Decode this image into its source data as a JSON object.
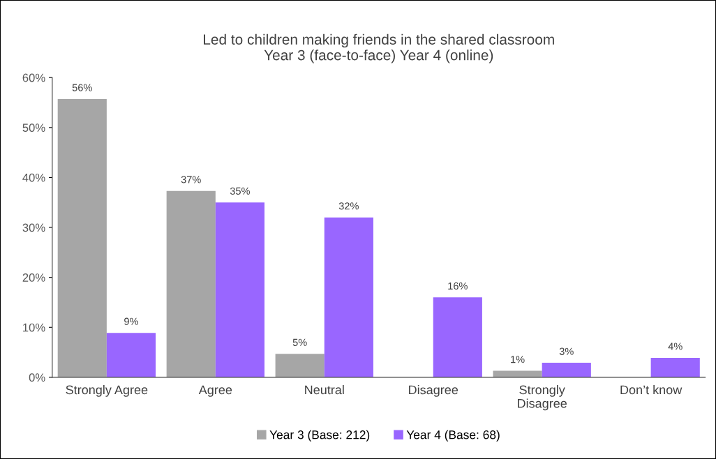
{
  "chart_data": {
    "type": "bar",
    "title": "Led to children making friends in the shared classroom\nYear 3 (face-to-face) Year 4 (online)",
    "categories": [
      "Strongly Agree",
      "Agree",
      "Neutral",
      "Disagree",
      "Strongly Disagree",
      "Don’t know"
    ],
    "series": [
      {
        "name": "Year 3 (Base: 212)",
        "color": "#a6a6a6",
        "values": [
          55.7,
          37.3,
          4.7,
          null,
          1.3,
          null
        ],
        "value_labels": [
          "56%",
          "37%",
          "5%",
          null,
          "1%",
          null
        ]
      },
      {
        "name": "Year 4 (Base: 68)",
        "color": "#9966ff",
        "values": [
          8.9,
          35,
          32,
          16,
          2.9,
          3.9
        ],
        "value_labels": [
          "9%",
          "35%",
          "32%",
          "16%",
          "3%",
          "4%"
        ]
      }
    ],
    "ylim": [
      0,
      60
    ],
    "yticks": [
      {
        "value": 0,
        "label": "0%"
      },
      {
        "value": 10,
        "label": "10%"
      },
      {
        "value": 20,
        "label": "20%"
      },
      {
        "value": 30,
        "label": "30%"
      },
      {
        "value": 40,
        "label": "40%"
      },
      {
        "value": 50,
        "label": "50%"
      },
      {
        "value": 60,
        "label": "60%"
      }
    ],
    "grid": false,
    "legend": "bottom"
  }
}
